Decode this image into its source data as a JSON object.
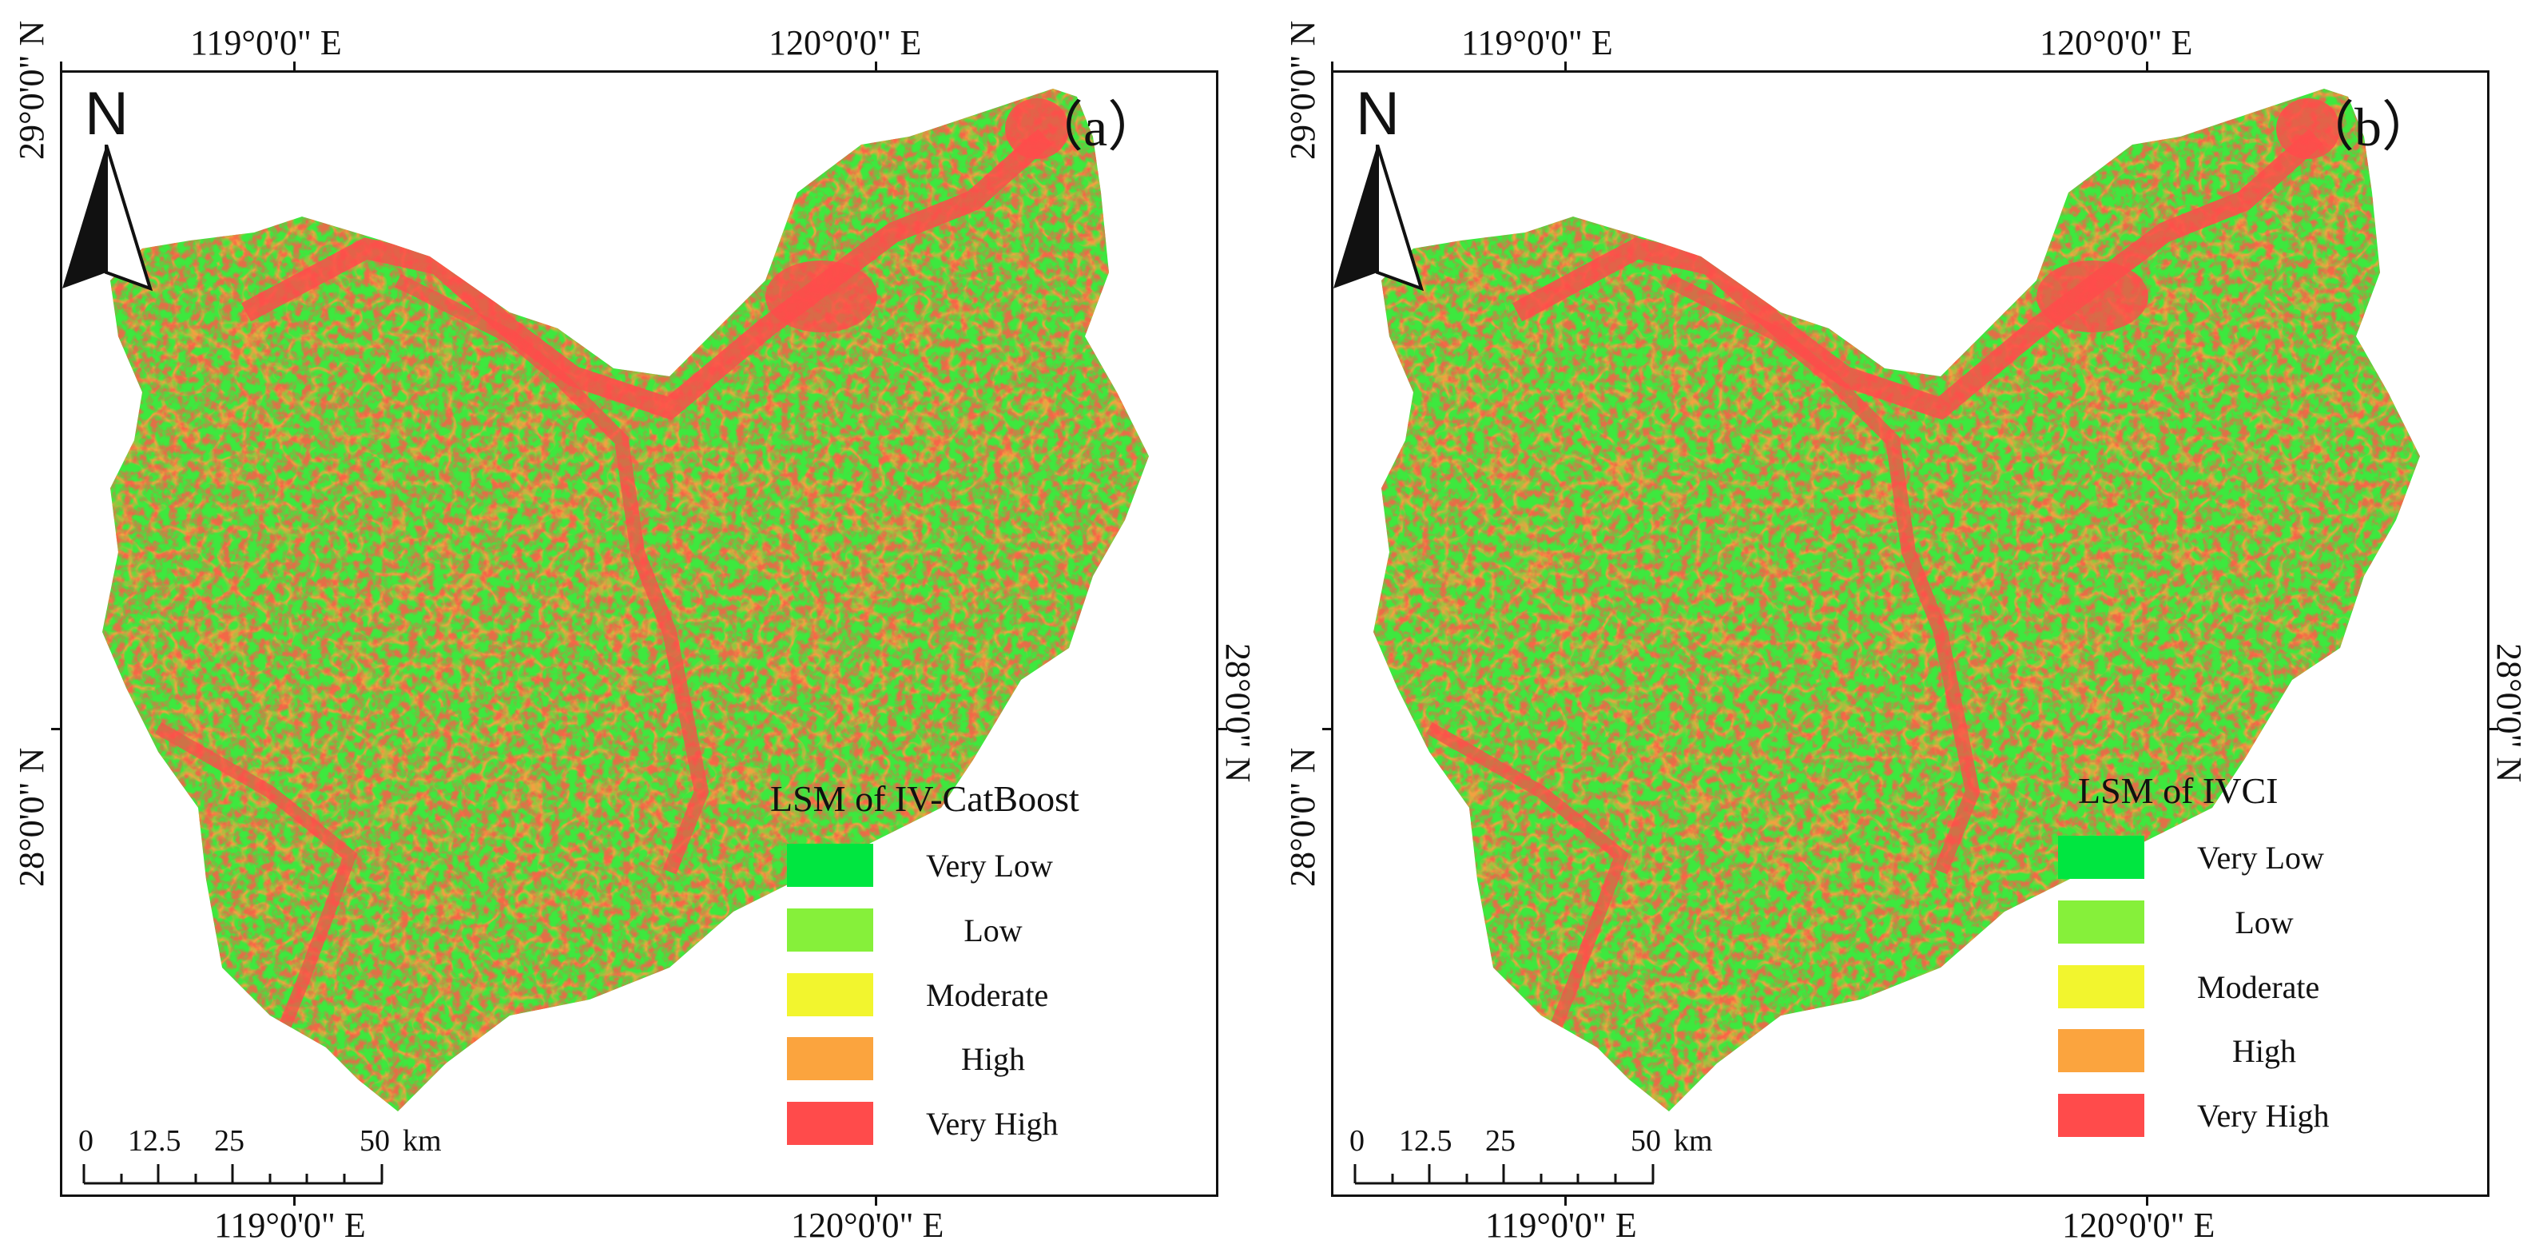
{
  "panels": [
    {
      "id": "a",
      "label": "（a）",
      "legend_title": "LSM of IV-CatBoost",
      "top_ticks": [
        "119°0'0\" E",
        "120°0'0\" E"
      ],
      "bottom_ticks": [
        "119°0'0\" E",
        "120°0'0\" E"
      ],
      "left_ticks": [
        "29°0'0\" N",
        "28°0'0\" N"
      ],
      "right_ticks": [
        "28°0'0\" N"
      ]
    },
    {
      "id": "b",
      "label": "（b）",
      "legend_title": "LSM of IVCI",
      "top_ticks": [
        "119°0'0\" E",
        "120°0'0\" E"
      ],
      "bottom_ticks": [
        "119°0'0\" E",
        "120°0'0\" E"
      ],
      "left_ticks": [
        "29°0'0\" N",
        "28°0'0\" N"
      ],
      "right_ticks": [
        "28°0'0\" N"
      ]
    }
  ],
  "north_arrow": {
    "letter": "N"
  },
  "scale_bar": {
    "labels": [
      "0",
      "12.5",
      "25",
      "50"
    ],
    "unit": "km"
  },
  "legend": [
    {
      "label": "Very Low",
      "color": "#00e640"
    },
    {
      "label": "Low",
      "color": "#86f03a"
    },
    {
      "label": "Moderate",
      "color": "#f2f52e"
    },
    {
      "label": "High",
      "color": "#fba43e"
    },
    {
      "label": "Very High",
      "color": "#ff4b4b"
    }
  ]
}
